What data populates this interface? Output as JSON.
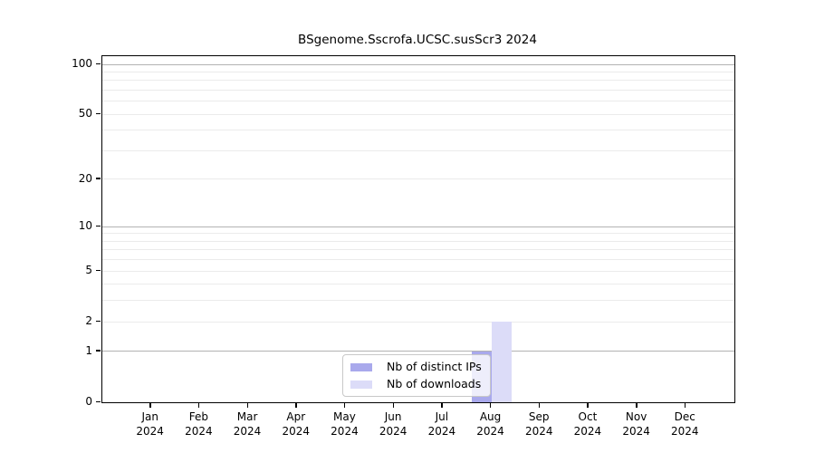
{
  "title": "BSgenome.Sscrofa.UCSC.susScr3 2024",
  "chart_data": {
    "type": "bar",
    "title": "BSgenome.Sscrofa.UCSC.susScr3 2024",
    "categories": [
      "Jan 2024",
      "Feb 2024",
      "Mar 2024",
      "Apr 2024",
      "May 2024",
      "Jun 2024",
      "Jul 2024",
      "Aug 2024",
      "Sep 2024",
      "Oct 2024",
      "Nov 2024",
      "Dec 2024"
    ],
    "series": [
      {
        "name": "Nb of distinct IPs",
        "color": "#a9a9ec",
        "values": [
          0,
          0,
          0,
          0,
          0,
          0,
          0,
          1,
          0,
          0,
          0,
          0
        ]
      },
      {
        "name": "Nb of downloads",
        "color": "#dcdcf8",
        "values": [
          0,
          0,
          0,
          0,
          0,
          0,
          0,
          2,
          0,
          0,
          0,
          0
        ]
      }
    ],
    "xlabel": "",
    "ylabel": "",
    "yscale": "log1p",
    "ylim": [
      0,
      100
    ],
    "ytick_values": [
      0,
      1,
      2,
      5,
      10,
      20,
      50,
      100
    ],
    "grid": "horizontal",
    "gridline_major_values": [
      1,
      10,
      100
    ],
    "gridline_minor_values": [
      2,
      3,
      4,
      5,
      6,
      7,
      8,
      9,
      20,
      30,
      40,
      50,
      60,
      70,
      80,
      90
    ],
    "legend_position": "inside-bottom-center"
  },
  "legend": {
    "items": [
      {
        "label": "Nb of distinct IPs",
        "color": "#a9a9ec"
      },
      {
        "label": "Nb of downloads",
        "color": "#dcdcf8"
      }
    ]
  },
  "colors": {
    "grid_major": "#b3b3b3",
    "grid_minor": "#ebebeb",
    "frame": "#000000",
    "background": "#ffffff",
    "legend_border": "#c8c8c8"
  }
}
